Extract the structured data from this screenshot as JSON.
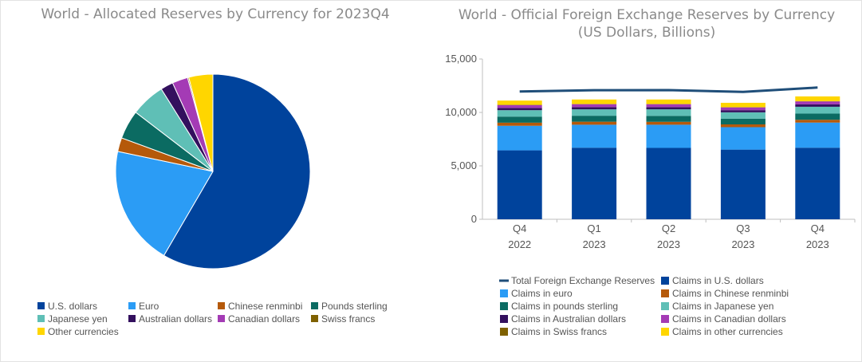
{
  "charts": {
    "pie": {
      "title": "World - Allocated Reserves by Currency for 2023Q4"
    },
    "bar": {
      "title_line1": "World - Official Foreign Exchange Reserves by Currency",
      "title_line2": "(US Dollars, Billions)"
    }
  },
  "chart_data": [
    {
      "type": "pie",
      "title": "World - Allocated Reserves by Currency for 2023Q4",
      "slices": [
        {
          "label": "U.S. dollars",
          "value": 58.4,
          "color": "#00439c"
        },
        {
          "label": "Euro",
          "value": 19.9,
          "color": "#2b9cf5"
        },
        {
          "label": "Chinese renminbi",
          "value": 2.3,
          "color": "#b5590a"
        },
        {
          "label": "Pounds sterling",
          "value": 4.8,
          "color": "#0b6b62"
        },
        {
          "label": "Japanese yen",
          "value": 5.7,
          "color": "#5fbfb6"
        },
        {
          "label": "Australian dollars",
          "value": 2.1,
          "color": "#33105e"
        },
        {
          "label": "Canadian dollars",
          "value": 2.6,
          "color": "#a43bb5"
        },
        {
          "label": "Swiss francs",
          "value": 0.2,
          "color": "#7f6100"
        },
        {
          "label": "Other currencies",
          "value": 4.0,
          "color": "#ffd600"
        }
      ],
      "legend_placement": "bottom"
    },
    {
      "type": "bar",
      "stacked": true,
      "title": "World - Official Foreign Exchange Reserves by Currency",
      "subtitle": "(US Dollars, Billions)",
      "categories": [
        [
          "Q4",
          "2022"
        ],
        [
          "Q1",
          "2023"
        ],
        [
          "Q2",
          "2023"
        ],
        [
          "Q3",
          "2023"
        ],
        [
          "Q4",
          "2023"
        ]
      ],
      "ylim": [
        0,
        15000
      ],
      "yticks": [
        0,
        5000,
        10000,
        15000
      ],
      "ytick_labels": [
        "0",
        "5,000",
        "10,000",
        "15,000"
      ],
      "line": {
        "name": "Total Foreign Exchange Reserves",
        "values": [
          11960,
          12080,
          12090,
          11920,
          12330
        ],
        "color": "#1f4e79"
      },
      "series": [
        {
          "name": "Claims in U.S. dollars",
          "values": [
            6450,
            6700,
            6680,
            6520,
            6700
          ],
          "color": "#00439c"
        },
        {
          "name": "Claims in euro",
          "values": [
            2300,
            2150,
            2170,
            2100,
            2350
          ],
          "color": "#2b9cf5"
        },
        {
          "name": "Claims in Chinese renminbi",
          "values": [
            290,
            280,
            270,
            260,
            260
          ],
          "color": "#b5590a"
        },
        {
          "name": "Claims in pounds sterling",
          "values": [
            570,
            560,
            560,
            540,
            580
          ],
          "color": "#0b6b62"
        },
        {
          "name": "Claims in Japanese yen",
          "values": [
            600,
            600,
            610,
            590,
            640
          ],
          "color": "#5fbfb6"
        },
        {
          "name": "Claims in Australian dollars",
          "values": [
            210,
            210,
            210,
            200,
            220
          ],
          "color": "#33105e"
        },
        {
          "name": "Claims in Canadian dollars",
          "values": [
            270,
            270,
            270,
            260,
            280
          ],
          "color": "#a43bb5"
        },
        {
          "name": "Claims in Swiss francs",
          "values": [
            20,
            20,
            20,
            20,
            20
          ],
          "color": "#7f6100"
        },
        {
          "name": "Claims in other currencies",
          "values": [
            400,
            420,
            420,
            410,
            450
          ],
          "color": "#ffd600"
        }
      ],
      "legend_placement": "bottom"
    }
  ]
}
